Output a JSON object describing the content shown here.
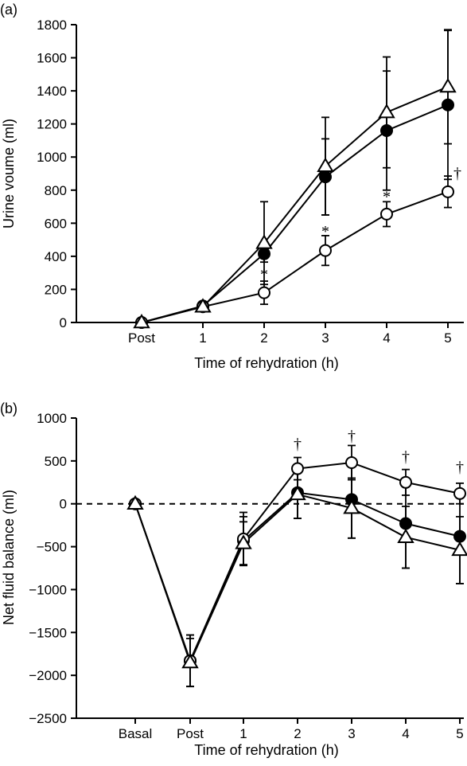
{
  "chart_data": [
    {
      "type": "line",
      "panel": "(a)",
      "xlabel": "Time of rehydration (h)",
      "ylabel": "Urine voume (ml)",
      "x": [
        "Post",
        "1",
        "2",
        "3",
        "4",
        "5"
      ],
      "ylim": [
        0,
        1800
      ],
      "yticks": [
        0,
        200,
        400,
        600,
        800,
        1000,
        1200,
        1400,
        1600,
        1800
      ],
      "grid": false,
      "series": [
        {
          "marker": "filled-circle",
          "values": [
            0,
            100,
            415,
            880,
            1160,
            1315
          ],
          "errors": [
            0,
            15,
            50,
            230,
            360,
            450
          ]
        },
        {
          "marker": "open-circle",
          "values": [
            0,
            95,
            180,
            435,
            655,
            790
          ],
          "errors": [
            0,
            15,
            70,
            90,
            75,
            95
          ]
        },
        {
          "marker": "open-triangle",
          "values": [
            0,
            95,
            480,
            945,
            1270,
            1425
          ],
          "errors": [
            0,
            20,
            250,
            295,
            335,
            345
          ]
        }
      ],
      "annotations": [
        {
          "text": "*",
          "x": "2",
          "y": 260
        },
        {
          "text": "*",
          "x": "3",
          "y": 520
        },
        {
          "text": "*",
          "x": "4",
          "y": 730
        },
        {
          "text": "†",
          "x": "5",
          "y": 870
        }
      ]
    },
    {
      "type": "line",
      "panel": "(b)",
      "xlabel": "Time of rehydration (h)",
      "ylabel": "Net fluid balance (ml)",
      "x": [
        "Basal",
        "Post",
        "1",
        "2",
        "3",
        "4",
        "5"
      ],
      "ylim": [
        -2500,
        1000
      ],
      "yticks": [
        1000,
        500,
        0,
        -500,
        -1000,
        -1500,
        -2000,
        -2500
      ],
      "reference_line": 0,
      "grid": false,
      "series": [
        {
          "marker": "filled-circle",
          "values": [
            0,
            -1830,
            -430,
            130,
            50,
            -230,
            -380
          ],
          "errors": [
            0,
            300,
            280,
            300,
            450,
            520,
            550
          ]
        },
        {
          "marker": "open-circle",
          "values": [
            0,
            -1830,
            -410,
            410,
            480,
            250,
            120
          ],
          "errors": [
            0,
            300,
            310,
            130,
            200,
            150,
            120
          ]
        },
        {
          "marker": "open-triangle",
          "values": [
            0,
            -1850,
            -460,
            110,
            -50,
            -390,
            -540
          ],
          "errors": [
            0,
            280,
            250,
            280,
            350,
            360,
            390
          ]
        }
      ],
      "annotations": [
        {
          "text": "†",
          "x": "2",
          "y": 640
        },
        {
          "text": "†",
          "x": "3",
          "y": 730
        },
        {
          "text": "†",
          "x": "4",
          "y": 490
        },
        {
          "text": "†",
          "x": "5",
          "y": 370
        }
      ]
    }
  ]
}
